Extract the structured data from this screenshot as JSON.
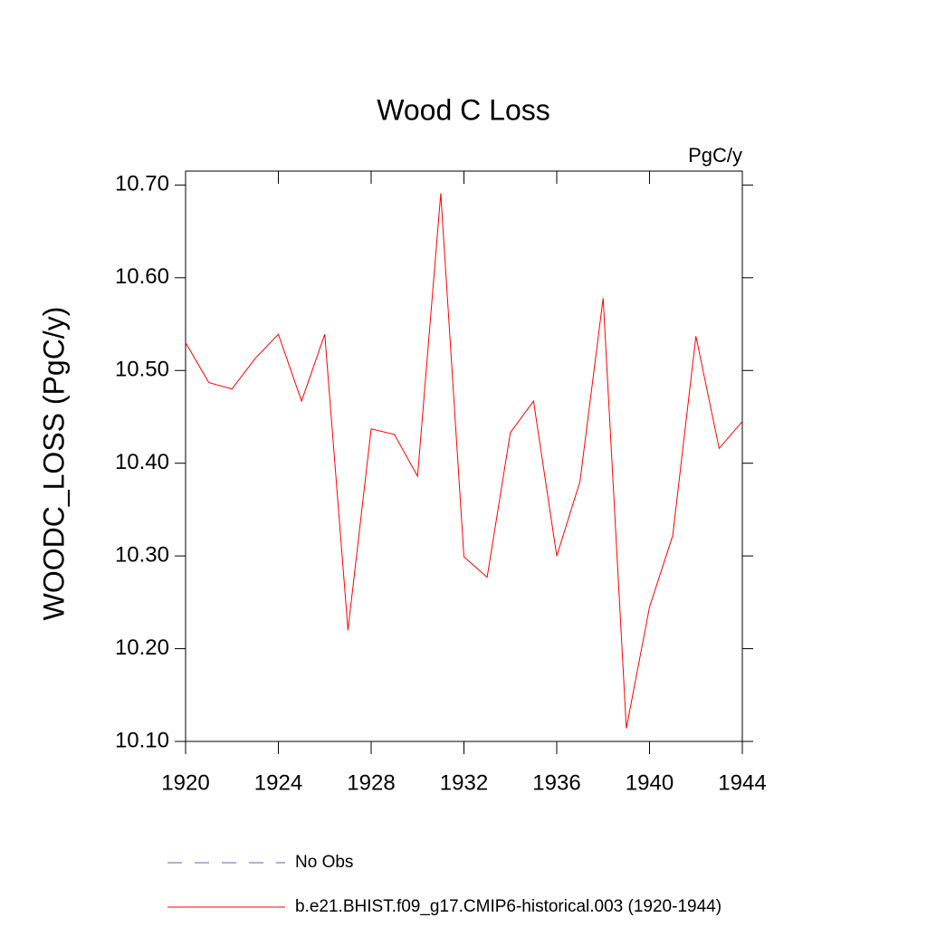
{
  "chart_data": {
    "type": "line",
    "title": "Wood C Loss",
    "units": "PgC/y",
    "ylabel": "WOODC_LOSS  (PgC/y)",
    "x": [
      1920,
      1921,
      1922,
      1923,
      1924,
      1925,
      1926,
      1927,
      1928,
      1929,
      1930,
      1931,
      1932,
      1933,
      1934,
      1935,
      1936,
      1937,
      1938,
      1939,
      1940,
      1941,
      1942,
      1943,
      1944
    ],
    "series": [
      {
        "name": "b.e21.BHIST.f09_g17.CMIP6-historical.003 (1920-1944)",
        "color": "#ff0000",
        "values": [
          10.53,
          10.487,
          10.48,
          10.513,
          10.539,
          10.467,
          10.539,
          10.22,
          10.437,
          10.431,
          10.386,
          10.691,
          10.299,
          10.277,
          10.433,
          10.467,
          10.3,
          10.38,
          10.578,
          10.114,
          10.245,
          10.322,
          10.537,
          10.416,
          10.445
        ]
      }
    ],
    "legend_extra": [
      {
        "name": "No Obs",
        "color": "#6060c8",
        "dashed": true
      }
    ],
    "xlim": [
      1920,
      1944
    ],
    "xticks": [
      1920,
      1924,
      1928,
      1932,
      1936,
      1940,
      1944
    ],
    "ylim": [
      10.1,
      10.715
    ],
    "yticks": [
      {
        "value": 10.1,
        "label": "10.10"
      },
      {
        "value": 10.2,
        "label": "10.20"
      },
      {
        "value": 10.3,
        "label": "10.30"
      },
      {
        "value": 10.4,
        "label": "10.40"
      },
      {
        "value": 10.5,
        "label": "10.50"
      },
      {
        "value": 10.6,
        "label": "10.60"
      },
      {
        "value": 10.7,
        "label": "10.70"
      }
    ]
  }
}
